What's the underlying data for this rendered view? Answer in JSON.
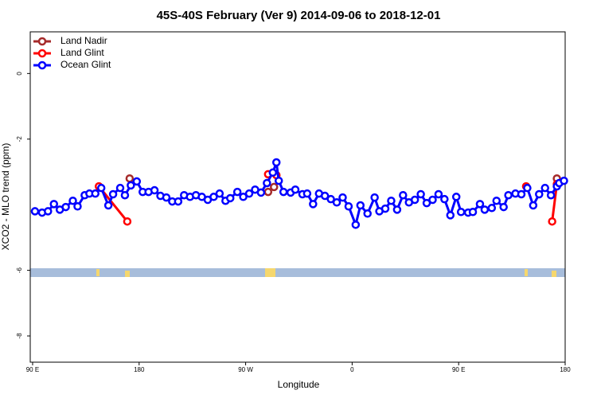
{
  "chart_data": {
    "type": "line",
    "title": "45S-40S February (Ver 9)   2014-09-06 to 2018-12-01",
    "x_label": "Longitude",
    "y_label": "XCO2 - MLO trend (ppm)",
    "xlim": [
      88,
      540
    ],
    "ylim": [
      -8.8,
      1.27
    ],
    "xticks": [
      {
        "value": 90,
        "label": "90 E"
      },
      180,
      {
        "value": 270,
        "label": "90 W"
      },
      {
        "value": 360,
        "label": "0"
      },
      {
        "value": 450,
        "label": "90 E"
      },
      {
        "value": 540,
        "label": "180"
      }
    ],
    "yticks": [
      0,
      -2,
      -6,
      -8
    ],
    "legend": "top-left",
    "series": [
      {
        "name": "Land Nadir",
        "color": "#a52a2a",
        "x": [
          172,
          null,
          289,
          294,
          null,
          533
        ],
        "values": [
          -3.2,
          null,
          -3.61,
          -3.46,
          null,
          -3.2
        ]
      },
      {
        "name": "Land Glint",
        "color": "#ff0000",
        "x": [
          146,
          170,
          null,
          289,
          296,
          null,
          507,
          null,
          529,
          533
        ],
        "values": [
          -3.44,
          -4.51,
          null,
          -3.07,
          -3.1,
          null,
          -3.44,
          null,
          -4.51,
          -3.37
        ]
      },
      {
        "name": "Ocean Glint",
        "color": "#0000ff",
        "x": [
          92,
          98,
          103,
          108,
          113,
          118,
          124,
          128,
          134,
          138,
          143,
          148,
          154,
          158,
          164,
          168,
          173,
          178,
          183,
          188,
          193,
          198,
          203,
          208,
          213,
          218,
          223,
          228,
          233,
          238,
          243,
          248,
          253,
          257,
          263,
          268,
          273,
          278,
          283,
          288,
          293,
          296,
          298,
          302,
          308,
          312,
          318,
          322,
          327,
          332,
          337,
          342,
          347,
          352,
          357,
          363,
          367,
          373,
          379,
          383,
          388,
          393,
          398,
          403,
          408,
          413,
          418,
          423,
          428,
          433,
          438,
          443,
          448,
          452,
          458,
          462,
          468,
          472,
          478,
          482,
          488,
          492,
          498,
          503,
          508,
          513,
          518,
          523,
          528,
          533,
          535,
          539
        ],
        "values": [
          -4.2,
          -4.24,
          -4.2,
          -3.98,
          -4.15,
          -4.07,
          -3.88,
          -4.05,
          -3.71,
          -3.66,
          -3.66,
          -3.49,
          -4.02,
          -3.68,
          -3.49,
          -3.71,
          -3.41,
          -3.29,
          -3.61,
          -3.61,
          -3.56,
          -3.73,
          -3.78,
          -3.9,
          -3.9,
          -3.71,
          -3.76,
          -3.71,
          -3.76,
          -3.85,
          -3.76,
          -3.66,
          -3.88,
          -3.8,
          -3.61,
          -3.76,
          -3.66,
          -3.54,
          -3.63,
          -3.34,
          -3.02,
          -2.71,
          -3.27,
          -3.61,
          -3.63,
          -3.54,
          -3.68,
          -3.66,
          -3.98,
          -3.66,
          -3.73,
          -3.83,
          -3.93,
          -3.78,
          -4.05,
          -4.61,
          -4.02,
          -4.27,
          -3.78,
          -4.2,
          -4.12,
          -3.88,
          -4.15,
          -3.71,
          -3.93,
          -3.85,
          -3.68,
          -3.95,
          -3.85,
          -3.68,
          -3.83,
          -4.32,
          -3.76,
          -4.22,
          -4.24,
          -4.22,
          -3.98,
          -4.15,
          -4.1,
          -3.88,
          -4.07,
          -3.71,
          -3.66,
          -3.68,
          -3.49,
          -4.02,
          -3.68,
          -3.49,
          -3.71,
          -3.44,
          -3.34,
          -3.27
        ]
      }
    ]
  }
}
